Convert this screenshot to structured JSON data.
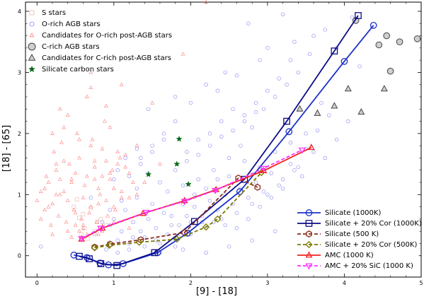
{
  "chart_data": {
    "type": "scatter",
    "xlabel": "[9] - [18]",
    "ylabel": "[18] - [65]",
    "xlim": [
      -0.15,
      5.0
    ],
    "ylim": [
      -0.35,
      4.15
    ],
    "xticks": [
      0,
      1,
      2,
      3,
      4,
      5
    ],
    "yticks": [
      0,
      1,
      2,
      3,
      4
    ],
    "legend_upper_position": "top-left",
    "legend_lower_position": "bottom-right",
    "scatter_series": [
      {
        "name": "S stars",
        "marker": "square",
        "color": "#e8b8a8",
        "size": 2.5,
        "x": [
          0.55,
          0.62,
          0.78,
          0.7,
          0.52,
          0.58,
          0.66,
          0.9,
          0.6,
          0.75,
          0.48,
          0.83
        ],
        "y": [
          0.62,
          0.45,
          0.55,
          0.78,
          0.92,
          0.35,
          0.28,
          0.5,
          0.68,
          0.4,
          0.8,
          0.6
        ]
      },
      {
        "name": "O-rich AGB stars",
        "marker": "circle",
        "color": "#8a8af0",
        "size": 2.4,
        "x": [
          0.05,
          0.75,
          0.95,
          1.05,
          1.25,
          1.35,
          1.45,
          1.55,
          1.65,
          1.75,
          1.85,
          1.95,
          2.05,
          2.15,
          2.25,
          2.35,
          2.45,
          2.55,
          2.65,
          2.75,
          2.85,
          2.95,
          3.05,
          3.15,
          3.3,
          3.45,
          3.6,
          3.75,
          3.9,
          4.05,
          1.15,
          1.3,
          1.5,
          1.7,
          1.9,
          2.1,
          2.3,
          2.5,
          2.7,
          2.9,
          3.1,
          3.3,
          3.5,
          1.2,
          1.4,
          1.6,
          1.8,
          2.0,
          2.2,
          2.4,
          2.6,
          2.8,
          3.0,
          3.2,
          3.4,
          3.7,
          4.2,
          1.0,
          1.1,
          1.25,
          1.4,
          1.55,
          1.7,
          1.85,
          2.0,
          2.15,
          2.3,
          2.45,
          2.6,
          2.75,
          2.9,
          3.05,
          3.2,
          3.35,
          3.5,
          3.65,
          3.8,
          0.85,
          0.95,
          1.1,
          1.3,
          1.45,
          1.6,
          1.75,
          1.9,
          2.05,
          2.2,
          2.35,
          2.5,
          2.65,
          2.8,
          2.95,
          3.1,
          3.25,
          3.4,
          3.55,
          1.35,
          1.5,
          1.65,
          1.8,
          1.95,
          2.1,
          2.25,
          2.4,
          2.55,
          2.7,
          2.85,
          3.0,
          3.15,
          3.3,
          1.2,
          1.35,
          1.5,
          1.65,
          1.8,
          1.95,
          2.1,
          2.25,
          2.4,
          2.55,
          2.7,
          2.85,
          0.9,
          1.05,
          1.2,
          1.6,
          1.9,
          2.2,
          2.5,
          2.8,
          3.1,
          1.05,
          1.15,
          2.35,
          2.6,
          2.9,
          3.35,
          3.75,
          4.1,
          2.0,
          2.2,
          2.45,
          3.0,
          1.45,
          2.75,
          3.2,
          3.6,
          3.9,
          0.7,
          1.0,
          1.3,
          1.8
        ],
        "y": [
          0.15,
          0.35,
          0.5,
          0.25,
          0.55,
          0.4,
          0.6,
          0.45,
          0.7,
          0.5,
          0.3,
          0.65,
          0.8,
          0.55,
          0.9,
          0.75,
          1.0,
          0.85,
          1.1,
          0.95,
          1.2,
          1.05,
          1.35,
          1.15,
          1.5,
          1.3,
          1.7,
          1.6,
          1.9,
          2.2,
          0.75,
          0.95,
          0.85,
          1.05,
          1.15,
          1.25,
          1.4,
          1.3,
          1.55,
          1.45,
          1.7,
          1.85,
          2.0,
          0.2,
          0.3,
          0.2,
          0.15,
          0.35,
          0.45,
          0.6,
          0.7,
          0.85,
          1.0,
          1.25,
          1.45,
          2.5,
          3.1,
          0.6,
          0.4,
          0.3,
          0.15,
          0.25,
          0.35,
          0.5,
          0.55,
          0.65,
          0.55,
          0.5,
          0.45,
          0.6,
          0.8,
          0.95,
          1.1,
          1.4,
          1.75,
          2.05,
          2.3,
          0.55,
          0.75,
          0.9,
          1.1,
          1.35,
          1.2,
          0.65,
          0.85,
          1.0,
          1.1,
          1.25,
          1.6,
          1.8,
          2.1,
          2.4,
          2.6,
          2.8,
          3.0,
          3.3,
          1.6,
          1.8,
          2.0,
          2.2,
          1.7,
          1.9,
          2.0,
          2.2,
          2.4,
          2.3,
          2.5,
          2.7,
          2.9,
          3.2,
          1.3,
          1.5,
          1.7,
          1.9,
          1.4,
          1.55,
          1.65,
          1.8,
          1.95,
          2.05,
          2.2,
          2.35,
          0.1,
          0.05,
          0.1,
          0.05,
          0.1,
          0.05,
          0.15,
          0.25,
          0.4,
          1.4,
          1.6,
          2.7,
          2.95,
          3.2,
          3.5,
          3.7,
          3.9,
          2.5,
          2.8,
          3.0,
          3.4,
          2.4,
          3.8,
          3.95,
          3.6,
          3.4,
          0.95,
          1.25,
          1.75,
          2.6
        ]
      },
      {
        "name": "C-rich AGB stars",
        "marker": "triangle",
        "color": "#ff8080",
        "size": 2.6,
        "x": [
          0.0,
          0.05,
          0.1,
          0.15,
          0.2,
          0.25,
          0.3,
          0.35,
          0.4,
          0.45,
          0.5,
          0.55,
          0.6,
          0.65,
          0.7,
          0.75,
          0.8,
          0.85,
          0.9,
          0.95,
          1.0,
          1.05,
          1.1,
          1.15,
          1.2,
          1.25,
          1.3,
          0.05,
          0.12,
          0.18,
          0.22,
          0.28,
          0.32,
          0.38,
          0.42,
          0.48,
          0.52,
          0.58,
          0.62,
          0.68,
          0.72,
          0.78,
          0.82,
          0.88,
          0.92,
          0.98,
          1.02,
          1.08,
          0.1,
          0.2,
          0.3,
          0.4,
          0.5,
          0.6,
          0.7,
          0.8,
          0.9,
          1.0,
          1.1,
          1.2,
          0.15,
          0.25,
          0.35,
          0.45,
          0.55,
          0.65,
          0.75,
          0.85,
          0.95,
          1.05,
          0.3,
          0.5,
          0.7,
          0.9,
          0.2,
          0.4,
          0.6,
          0.8,
          1.0,
          1.2,
          0.35,
          0.55,
          0.75,
          0.95,
          1.15,
          0.45,
          0.65,
          0.85,
          1.4,
          1.6,
          1.3,
          0.25,
          0.7,
          1.1,
          1.5,
          1.9,
          2.2
        ],
        "y": [
          0.9,
          1.05,
          0.75,
          1.2,
          0.85,
          1.4,
          1.0,
          1.55,
          0.9,
          1.25,
          0.7,
          1.6,
          0.95,
          1.3,
          0.8,
          1.45,
          1.1,
          1.75,
          0.9,
          1.35,
          0.8,
          1.5,
          1.05,
          1.65,
          0.95,
          1.2,
          1.0,
          0.6,
          1.3,
          0.5,
          1.7,
          0.65,
          1.85,
          0.55,
          1.5,
          0.75,
          2.0,
          0.6,
          1.15,
          0.7,
          1.9,
          0.55,
          1.0,
          2.2,
          0.65,
          1.4,
          0.75,
          1.6,
          1.1,
          2.0,
          1.25,
          2.3,
          1.35,
          0.45,
          1.8,
          0.85,
          2.45,
          1.1,
          0.95,
          1.35,
          0.8,
          1.5,
          1.05,
          1.2,
          0.4,
          2.6,
          1.25,
          1.3,
          2.1,
          1.7,
          2.4,
          0.5,
          2.75,
          1.55,
          0.35,
          0.4,
          0.5,
          0.35,
          0.55,
          0.45,
          2.1,
          1.9,
          1.55,
          1.25,
          1.45,
          0.3,
          0.35,
          0.4,
          1.2,
          1.5,
          1.8,
          1.0,
          3.0,
          2.8,
          2.5,
          3.3,
          4.15
        ]
      },
      {
        "name": "Candidates for O-rich post-AGB stars",
        "marker": "circle",
        "color": "#444444",
        "fill": "#cfcfcf",
        "size": 4.3,
        "x": [
          4.45,
          4.55,
          4.72,
          4.95,
          4.6,
          4.15
        ],
        "y": [
          3.45,
          3.6,
          3.5,
          3.55,
          3.02,
          3.85
        ]
      },
      {
        "name": "Candidates for C-rich post-AGB stars",
        "marker": "triangle",
        "color": "#444444",
        "fill": "#cfcfcf",
        "size": 4.6,
        "x": [
          3.42,
          3.65,
          3.87,
          4.05,
          4.22,
          4.52
        ],
        "y": [
          2.4,
          2.33,
          2.45,
          2.73,
          2.35,
          2.73
        ]
      },
      {
        "name": "Silicate carbon stars",
        "marker": "star",
        "color": "#0b6b1d",
        "size": 3.8,
        "x": [
          1.45,
          1.85,
          1.82,
          1.97
        ],
        "y": [
          1.33,
          1.91,
          1.5,
          1.17
        ]
      }
    ],
    "model_series": [
      {
        "name": "Silicate (1000K)",
        "marker": "circle",
        "color": "#1c31c8",
        "dash": false,
        "x": [
          0.48,
          0.65,
          0.82,
          0.93,
          1.12,
          1.57,
          1.96,
          2.64,
          3.28,
          4.0,
          4.38
        ],
        "y": [
          0.01,
          -0.03,
          -0.12,
          -0.15,
          -0.13,
          0.05,
          0.37,
          1.05,
          2.03,
          3.18,
          3.77
        ]
      },
      {
        "name": "Silicate + 20% Cor (1000K)",
        "marker": "square",
        "color": "#0c0c8a",
        "dash": false,
        "x": [
          0.55,
          0.68,
          0.83,
          1.04,
          1.53,
          2.05,
          2.7,
          3.25,
          3.87,
          4.18
        ],
        "y": [
          -0.01,
          -0.05,
          -0.13,
          -0.16,
          0.05,
          0.56,
          1.25,
          2.2,
          3.35,
          3.93
        ]
      },
      {
        "name": "Silicate (500 K)",
        "marker": "hexagon",
        "color": "#8a2a1a",
        "dash": true,
        "x": [
          0.75,
          0.95,
          1.35,
          1.92,
          2.62,
          2.87
        ],
        "y": [
          0.14,
          0.19,
          0.26,
          0.38,
          1.27,
          1.12
        ]
      },
      {
        "name": "Silicate + 20% Cor (500K)",
        "marker": "diamond",
        "color": "#7a7a00",
        "dash": true,
        "x": [
          0.75,
          0.94,
          1.33,
          1.82,
          2.2,
          2.35,
          2.92
        ],
        "y": [
          0.13,
          0.17,
          0.22,
          0.27,
          0.47,
          0.6,
          1.36
        ]
      },
      {
        "name": "AMC (1000 K)",
        "marker": "triangle",
        "color": "#f02020",
        "dash": false,
        "x": [
          0.58,
          0.85,
          1.38,
          1.92,
          2.33,
          2.95,
          3.57
        ],
        "y": [
          0.27,
          0.45,
          0.69,
          0.9,
          1.08,
          1.39,
          1.77
        ]
      },
      {
        "name": "AMC + 20% SiC (1000 K)",
        "marker": "triangle-down",
        "color": "#ff30ff",
        "dash": true,
        "x": [
          0.58,
          0.83,
          1.42,
          1.92,
          2.32,
          2.95,
          3.45
        ],
        "y": [
          0.28,
          0.45,
          0.71,
          0.89,
          1.07,
          1.43,
          1.73
        ]
      }
    ]
  },
  "ui": {
    "xlabel": "[9] - [18]",
    "ylabel": "[18] - [65]",
    "xtick_labels": [
      "0",
      "1",
      "2",
      "3",
      "4",
      "5"
    ],
    "ytick_labels": [
      "0",
      "1",
      "2",
      "3",
      "4"
    ],
    "legend_upper": [
      "S stars",
      "O-rich AGB stars",
      "Candidates for O-rich post-AGB stars",
      "C-rich AGB stars",
      "Candidates for C-rich post-AGB stars",
      "Silicate carbon stars"
    ],
    "legend_lower": [
      "Silicate (1000K)",
      "Silicate + 20% Cor (1000K)",
      "Silicate (500 K)",
      "Silicate + 20% Cor (500K)",
      "AMC (1000 K)",
      "AMC + 20% SiC (1000 K)"
    ]
  }
}
